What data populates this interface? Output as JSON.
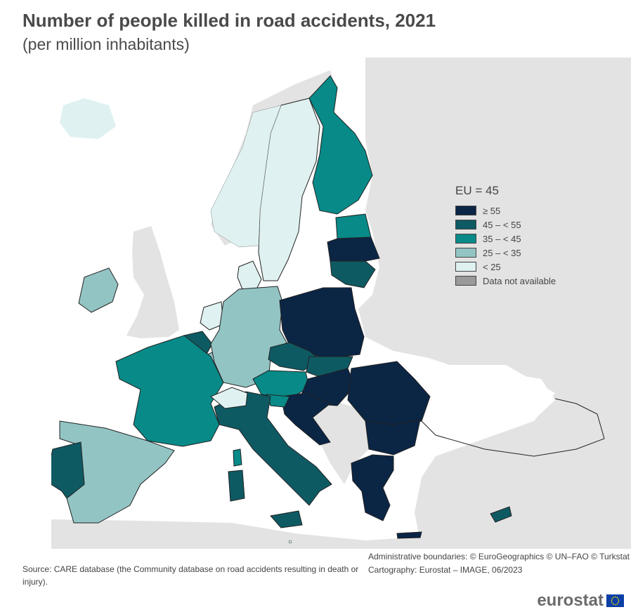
{
  "title": "Number of people killed in road accidents, 2021",
  "subtitle": "(per million inhabitants)",
  "legend": {
    "title": "EU = 45",
    "items": [
      {
        "label": "≥ 55",
        "color": "#0b2545"
      },
      {
        "label": "45 – < 55",
        "color": "#0e5a63"
      },
      {
        "label": "35 – < 45",
        "color": "#088a88"
      },
      {
        "label": "25 – < 35",
        "color": "#93c4c4"
      },
      {
        "label": "< 25",
        "color": "#dff1f1"
      },
      {
        "label": "Data not available",
        "color": "#9a9a9a"
      }
    ]
  },
  "credits": {
    "line1": "Administrative boundaries: © EuroGeographics © UN–FAO © Turkstat",
    "line2": "Cartography: Eurostat – IMAGE, 06/2023"
  },
  "source": "Source: CARE database (the Community database on road accidents resulting in death or injury).",
  "logo": {
    "text": "eurostat"
  },
  "colors": {
    "non_eu": "#e3e3e3",
    "sea": "#ffffff",
    "border": "#222222"
  },
  "regions": {
    "ge55": [
      "Poland",
      "Latvia",
      "Romania",
      "Bulgaria",
      "Greece",
      "Croatia"
    ],
    "r45_55": [
      "Lithuania",
      "Czechia",
      "Slovakia",
      "Belgium",
      "Italy",
      "Portugal",
      "Cyprus"
    ],
    "r35_45": [
      "Finland",
      "Estonia",
      "France",
      "Austria",
      "Slovenia"
    ],
    "r25_35": [
      "Germany",
      "Spain",
      "Ireland",
      "Luxembourg"
    ],
    "lt25": [
      "Sweden",
      "Denmark",
      "Netherlands",
      "Malta"
    ]
  }
}
